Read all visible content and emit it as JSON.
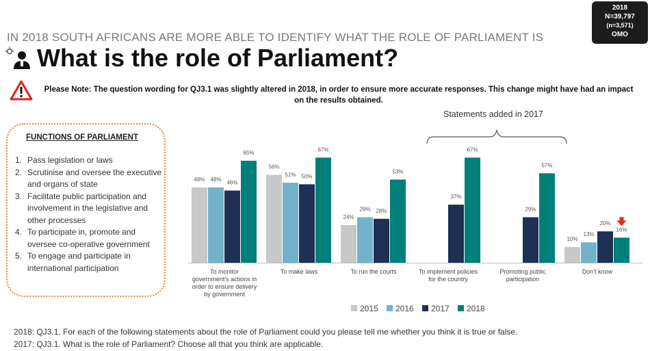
{
  "badge": {
    "year": "2018",
    "n_total": "N=39,797",
    "n_sub": "(n=3,571)",
    "code": "OMO"
  },
  "supertitle": "IN 2018 SOUTH AFRICANS ARE MORE ABLE TO IDENTIFY WHAT THE ROLE OF PARLIAMENT IS",
  "title": "What is the role of Parliament?",
  "note": "Please Note: The question wording for QJ3.1 was slightly altered in 2018, in order to ensure more accurate responses. This change might have had an impact on the results obtained.",
  "functions": {
    "title": "FUNCTIONS OF PARLIAMENT",
    "items": [
      {
        "num": "1.",
        "text": "Pass legislation or laws"
      },
      {
        "num": "2.",
        "text": "Scrutinise and oversee the executive and organs of state"
      },
      {
        "num": "3.",
        "text": "Facilitate public participation and involvement in the legislative and other processes"
      },
      {
        "num": "4.",
        "text": "To participate in, promote and oversee co-operative government"
      },
      {
        "num": "5.",
        "text": "To engage and participate in international participation"
      }
    ]
  },
  "added_label": "Statements added in 2017",
  "footnotes": [
    "2018: QJ3.1. For each of the following statements about the role of Parliament could you please tell me whether you think it is true or false.",
    "2017: QJ3.1. What is the role of Parliament? Choose all that you think are applicable."
  ],
  "colors": {
    "2015": "#c8c8c8",
    "2016": "#74b2cc",
    "2017": "#1e3054",
    "2018": "#007f7b",
    "arrow": "#e8281e",
    "box_border": "#e8842f"
  },
  "chart_data": {
    "type": "bar",
    "categories": [
      [
        "To monitor",
        "government's actions in",
        "order to ensure delivery",
        "by government"
      ],
      [
        "To make laws"
      ],
      [
        "To run the courts"
      ],
      [
        "To implement policies",
        "for the country"
      ],
      [
        "Promoting public",
        "participation"
      ],
      [
        "Don't know"
      ]
    ],
    "series": [
      {
        "name": "2015",
        "values": [
          48,
          56,
          24,
          null,
          null,
          10
        ]
      },
      {
        "name": "2016",
        "values": [
          48,
          51,
          29,
          null,
          null,
          13
        ]
      },
      {
        "name": "2017",
        "values": [
          46,
          50,
          28,
          37,
          29,
          20
        ]
      },
      {
        "name": "2018",
        "values": [
          65,
          67,
          53,
          67,
          57,
          16
        ]
      }
    ],
    "value_suffix": "%",
    "ylim": [
      0,
      75
    ],
    "legend_position": "bottom",
    "annotation": "decrease arrow above Don't know 2018 bar"
  }
}
